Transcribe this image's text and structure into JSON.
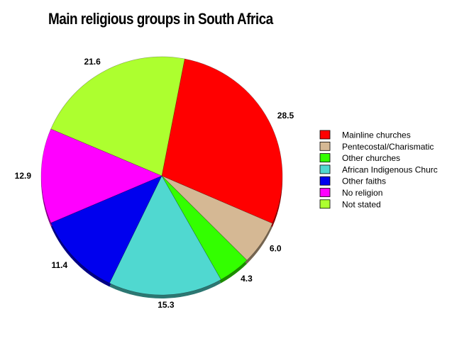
{
  "chart_data": {
    "type": "pie",
    "title": "Main religious groups in South Africa",
    "categories": [
      "Mainline churches",
      "Pentecostal/Charismatic",
      "Other churches",
      "African Indigenous Churc",
      "Other faiths",
      "No religion",
      "Not stated"
    ],
    "values": [
      28.5,
      6.0,
      4.3,
      15.3,
      11.4,
      12.9,
      21.6
    ],
    "value_labels": [
      "28.5",
      "6.0",
      "4.3",
      "15.3",
      "11.4",
      "12.9",
      "21.6"
    ],
    "colors": [
      "#ff0000",
      "#d5b894",
      "#33ff00",
      "#50d8d0",
      "#0000ee",
      "#ff00ff",
      "#adff2f"
    ],
    "legend_position": "right"
  }
}
